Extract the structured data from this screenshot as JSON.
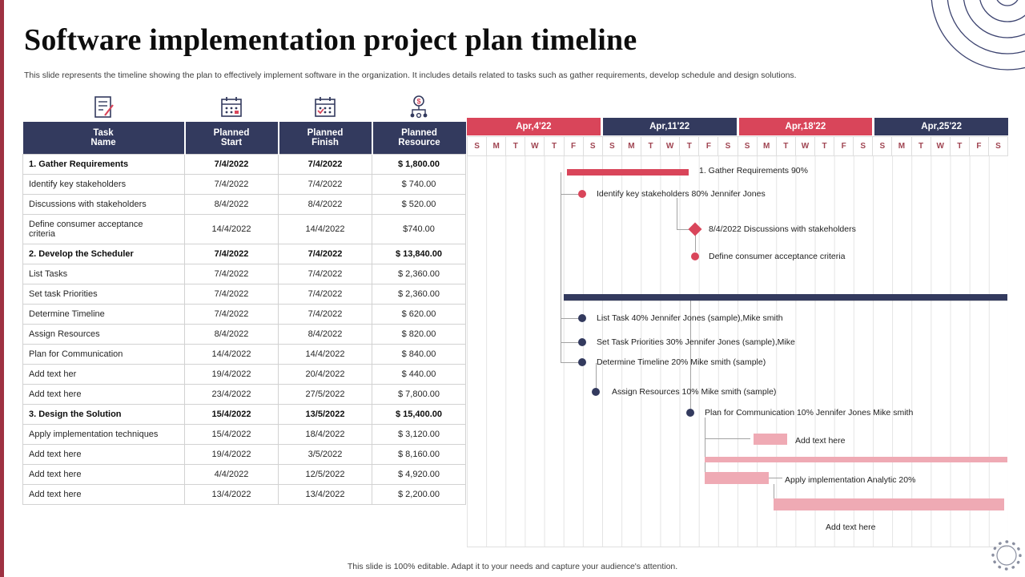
{
  "slide": {
    "title": "Software implementation project plan timeline",
    "subtitle": "This slide represents the timeline showing the plan to effectively implement software in the organization. It includes details related to tasks such as gather requirements, develop schedule and design solutions.",
    "footer": "This slide is 100% editable. Adapt it to your needs and capture your audience's attention."
  },
  "colors": {
    "navy": "#333a5e",
    "red": "#d9455a",
    "pink": "#efaab4",
    "day_letter": "#a04552"
  },
  "table": {
    "headers": [
      "Task\nName",
      "Planned\nStart",
      "Planned\nFinish",
      "Planned\nResource"
    ],
    "rows": [
      {
        "task": "1. Gather Requirements",
        "start": "7/4/2022",
        "finish": "7/4/2022",
        "resource": "$ 1,800.00",
        "bold": true
      },
      {
        "task": "Identify key stakeholders",
        "start": "7/4/2022",
        "finish": "7/4/2022",
        "resource": "$ 740.00",
        "bold": false
      },
      {
        "task": "Discussions with stakeholders",
        "start": "8/4/2022",
        "finish": "8/4/2022",
        "resource": "$ 520.00",
        "bold": false
      },
      {
        "task": "Define consumer acceptance criteria",
        "start": "14/4/2022",
        "finish": "14/4/2022",
        "resource": "$740.00",
        "bold": false
      },
      {
        "task": "2. Develop the Scheduler",
        "start": "7/4/2022",
        "finish": "7/4/2022",
        "resource": "$ 13,840.00",
        "bold": true
      },
      {
        "task": "List Tasks",
        "start": "7/4/2022",
        "finish": "7/4/2022",
        "resource": "$ 2,360.00",
        "bold": false
      },
      {
        "task": "Set task Priorities",
        "start": "7/4/2022",
        "finish": "7/4/2022",
        "resource": "$ 2,360.00",
        "bold": false
      },
      {
        "task": "Determine Timeline",
        "start": "7/4/2022",
        "finish": "7/4/2022",
        "resource": "$ 620.00",
        "bold": false
      },
      {
        "task": "Assign Resources",
        "start": "8/4/2022",
        "finish": "8/4/2022",
        "resource": "$ 820.00",
        "bold": false
      },
      {
        "task": "Plan for Communication",
        "start": "14/4/2022",
        "finish": "14/4/2022",
        "resource": "$ 840.00",
        "bold": false
      },
      {
        "task": "Add text her",
        "start": "19/4/2022",
        "finish": "20/4/2022",
        "resource": "$ 440.00",
        "bold": false
      },
      {
        "task": "Add text here",
        "start": "23/4/2022",
        "finish": "27/5/2022",
        "resource": "$ 7,800.00",
        "bold": false
      },
      {
        "task": "3. Design the Solution",
        "start": "15/4/2022",
        "finish": "13/5/2022",
        "resource": "$ 15,400.00",
        "bold": true
      },
      {
        "task": "Apply implementation techniques",
        "start": "15/4/2022",
        "finish": "18/4/2022",
        "resource": "$ 3,120.00",
        "bold": false
      },
      {
        "task": "Add text here",
        "start": "19/4/2022",
        "finish": "3/5/2022",
        "resource": "$ 8,160.00",
        "bold": false
      },
      {
        "task": "Add text here",
        "start": "4/4/2022",
        "finish": "12/5/2022",
        "resource": "$ 4,920.00",
        "bold": false
      },
      {
        "task": "Add text here",
        "start": "13/4/2022",
        "finish": "13/4/2022",
        "resource": "$ 2,200.00",
        "bold": false
      }
    ]
  },
  "chart_data": {
    "type": "gantt",
    "title": "Software implementation project plan timeline",
    "weeks": [
      {
        "label": "Apr,4'22",
        "tone": "red"
      },
      {
        "label": "Apr,11'22",
        "tone": "navy"
      },
      {
        "label": "Apr,18'22",
        "tone": "red"
      },
      {
        "label": "Apr,25'22",
        "tone": "navy"
      }
    ],
    "day_letters": [
      "S",
      "M",
      "T",
      "W",
      "T",
      "F",
      "S"
    ],
    "items": [
      {
        "kind": "bar",
        "tone": "red",
        "label": "1. Gather Requirements 90%",
        "task": "1. Gather Requirements",
        "progress": "90%"
      },
      {
        "kind": "dot",
        "tone": "red",
        "label": "Identify key stakeholders 80% Jennifer Jones",
        "task": "Identify key stakeholders",
        "progress": "80%"
      },
      {
        "kind": "diamond",
        "tone": "red",
        "label": "8/4/2022  Discussions with stakeholders",
        "task": "Discussions with stakeholders",
        "date": "8/4/2022"
      },
      {
        "kind": "dot",
        "tone": "red",
        "label": "Define consumer acceptance criteria",
        "task": "Define consumer acceptance criteria"
      },
      {
        "kind": "summary",
        "tone": "navy",
        "label": "",
        "task": "2. Develop the Scheduler"
      },
      {
        "kind": "dot",
        "tone": "navy",
        "label": "List Task 40% Jennifer Jones (sample),Mike smith",
        "task": "List Tasks",
        "progress": "40%"
      },
      {
        "kind": "dot",
        "tone": "navy",
        "label": "Set Task Priorities 30% Jennifer Jones (sample),Mike",
        "task": "Set task Priorities",
        "progress": "30%"
      },
      {
        "kind": "dot",
        "tone": "navy",
        "label": "Determine Timeline 20% Mike smith (sample)",
        "task": "Determine Timeline",
        "progress": "20%"
      },
      {
        "kind": "dot",
        "tone": "navy",
        "label": "Assign Resources 10% Mike smith (sample)",
        "task": "Assign Resources",
        "progress": "10%"
      },
      {
        "kind": "dot",
        "tone": "navy",
        "label": "Plan for Communication 10% Jennifer Jones Mike smith",
        "task": "Plan for Communication",
        "progress": "10%"
      },
      {
        "kind": "bar",
        "tone": "pink",
        "label": "Add text here",
        "task": "Add text her"
      },
      {
        "kind": "bar",
        "tone": "pink",
        "label": "",
        "task": "Add text here"
      },
      {
        "kind": "bar",
        "tone": "pink",
        "label": "Apply implementation Analytic 20%",
        "task": "Apply implementation techniques",
        "progress": "20%"
      },
      {
        "kind": "bar",
        "tone": "pink",
        "label": "Add text here",
        "task": "Add text here"
      }
    ]
  }
}
